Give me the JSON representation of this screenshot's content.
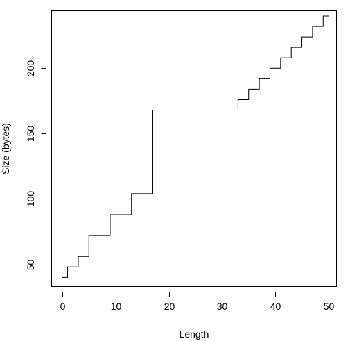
{
  "chart_data": {
    "type": "line",
    "line_style": "step",
    "title": "",
    "xlabel": "Length",
    "ylabel": "Size (bytes)",
    "xlim": [
      -2,
      51.5
    ],
    "ylim": [
      33,
      244
    ],
    "x_ticks": [
      0,
      10,
      20,
      30,
      40,
      50
    ],
    "y_ticks": [
      50,
      100,
      150,
      200
    ],
    "grid": false,
    "legend": "none",
    "colors": {
      "line": "#000000",
      "axis": "#000000",
      "background": "#ffffff"
    },
    "series": [
      {
        "x": [
          0,
          1,
          3,
          5,
          9,
          13,
          17,
          33,
          35,
          37,
          39,
          41,
          43,
          45,
          47,
          49,
          50
        ],
        "y": [
          40,
          48,
          56,
          72,
          88,
          104,
          168,
          176,
          184,
          192,
          200,
          208,
          216,
          224,
          232,
          240,
          240
        ]
      }
    ]
  }
}
